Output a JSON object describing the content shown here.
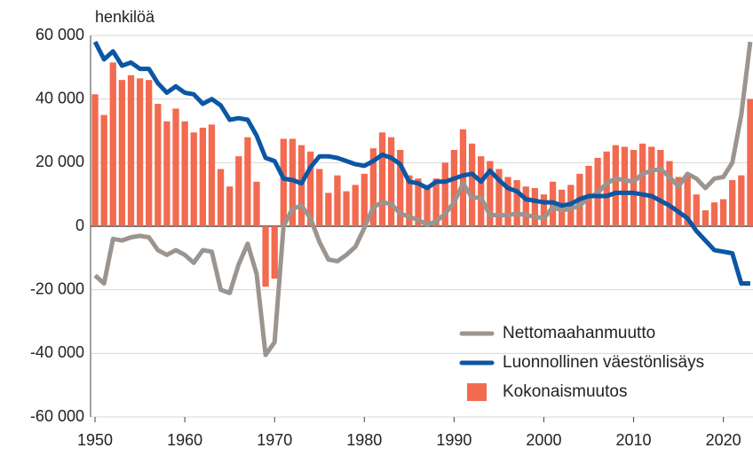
{
  "chart_data": {
    "type": "bar-line",
    "y_label": "henkilöä",
    "xlim": [
      1949.5,
      2023.5
    ],
    "xticks": [
      1950,
      1960,
      1970,
      1980,
      1990,
      2000,
      2010,
      2020
    ],
    "ylim": [
      -60000,
      60000
    ],
    "yticks": [
      {
        "value": -60000,
        "label": "-60 000"
      },
      {
        "value": -40000,
        "label": "-40 000"
      },
      {
        "value": -20000,
        "label": "-20 000"
      },
      0,
      {
        "value": 20000,
        "label": "20 000"
      },
      {
        "value": 40000,
        "label": "40 000"
      },
      {
        "value": 60000,
        "label": "60 000"
      }
    ],
    "grid": true,
    "legend": "lower right",
    "x": [
      1950,
      1951,
      1952,
      1953,
      1954,
      1955,
      1956,
      1957,
      1958,
      1959,
      1960,
      1961,
      1962,
      1963,
      1964,
      1965,
      1966,
      1967,
      1968,
      1969,
      1970,
      1971,
      1972,
      1973,
      1974,
      1975,
      1976,
      1977,
      1978,
      1979,
      1980,
      1981,
      1982,
      1983,
      1984,
      1985,
      1986,
      1987,
      1988,
      1989,
      1990,
      1991,
      1992,
      1993,
      1994,
      1995,
      1996,
      1997,
      1998,
      1999,
      2000,
      2001,
      2002,
      2003,
      2004,
      2005,
      2006,
      2007,
      2008,
      2009,
      2010,
      2011,
      2012,
      2013,
      2014,
      2015,
      2016,
      2017,
      2018,
      2019,
      2020,
      2021,
      2022,
      2023
    ],
    "series": [
      {
        "name": "Nettomaahanmuutto",
        "kind": "line",
        "color": "#9b948f",
        "values": [
          -15500,
          -18000,
          -4000,
          -4500,
          -3500,
          -3000,
          -3500,
          -7500,
          -9000,
          -7500,
          -9000,
          -11500,
          -7500,
          -8000,
          -20000,
          -21000,
          -12000,
          -5500,
          -15000,
          -40500,
          -36500,
          0,
          5500,
          6500,
          2500,
          -5000,
          -10500,
          -11000,
          -9000,
          -6500,
          -500,
          6000,
          7500,
          7000,
          4000,
          3000,
          2000,
          500,
          1500,
          4000,
          7500,
          13500,
          9000,
          9000,
          3500,
          3500,
          3500,
          4000,
          3500,
          3000,
          2500,
          6000,
          5000,
          5500,
          6500,
          9000,
          10500,
          13500,
          15000,
          14500,
          14000,
          16500,
          17500,
          18000,
          15500,
          12500,
          16500,
          15000,
          12000,
          15000,
          15500,
          20000,
          35000,
          58000
        ]
      },
      {
        "name": "Luonnollinen väestönlisäys",
        "kind": "line",
        "color": "#0b57a4",
        "values": [
          58000,
          52500,
          55000,
          50500,
          51500,
          49500,
          49500,
          45000,
          42000,
          44000,
          42000,
          41500,
          38500,
          40000,
          38000,
          33500,
          34000,
          33500,
          28500,
          21500,
          20500,
          15000,
          14500,
          13500,
          18500,
          22000,
          22000,
          21500,
          20500,
          19500,
          19000,
          20500,
          22500,
          21500,
          19500,
          14000,
          13500,
          12000,
          14000,
          14000,
          15000,
          16000,
          16500,
          14000,
          17500,
          14500,
          12000,
          11000,
          8500,
          8000,
          7500,
          7500,
          6500,
          7000,
          8500,
          9500,
          9500,
          9500,
          10500,
          10500,
          10500,
          10000,
          9500,
          8000,
          6500,
          4500,
          2500,
          -1500,
          -4500,
          -7500,
          -8000,
          -8500,
          -18000,
          -18000
        ]
      },
      {
        "name": "Kokonaismuutos",
        "kind": "bar",
        "color": "#f26a4f",
        "values": [
          41500,
          35000,
          51500,
          46000,
          47500,
          46500,
          46000,
          38500,
          33000,
          37000,
          33000,
          29500,
          31000,
          32000,
          18000,
          12500,
          22000,
          28000,
          14000,
          -19000,
          -16500,
          27500,
          27500,
          25500,
          23500,
          18000,
          10500,
          16000,
          11000,
          13000,
          16500,
          24500,
          29500,
          28000,
          24000,
          16000,
          15000,
          13000,
          15000,
          20000,
          24000,
          30500,
          26000,
          22000,
          20500,
          18000,
          15500,
          14500,
          12500,
          12000,
          10000,
          14000,
          11500,
          13000,
          16500,
          19000,
          21500,
          23500,
          25500,
          25000,
          24000,
          26000,
          25000,
          24000,
          20500,
          15500,
          16000,
          10000,
          5000,
          7500,
          8500,
          14500,
          16000,
          40000
        ]
      }
    ]
  }
}
